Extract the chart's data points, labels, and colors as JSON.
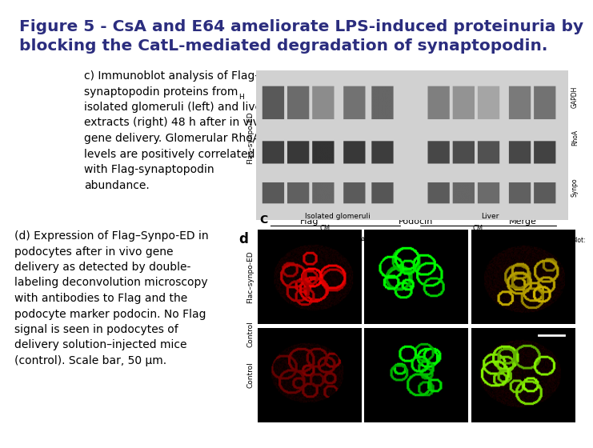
{
  "title_line1": "Figure 5 - CsA and E64 ameliorate LPS-induced proteinuria by",
  "title_line2": "blocking the CatL-mediated degradation of synaptopodin.",
  "title_color": "#2b2d7e",
  "title_fontsize": 14.5,
  "background_color": "#ffffff",
  "panel_c_fontsize": 10.0,
  "panel_d_fontsize": 10.0,
  "caption_c_full": "c) Immunoblot analysis of Flag-\nsynaptopodin proteins from\nisolated glomeruli (left) and liver\nextracts (right) 48 h after in vivo\ngene delivery. Glomerular RhoA\nlevels are positively correlated\nwith Flag-synaptopodin\nabundance.",
  "caption_d_full": "(d) Expression of Flag–Synpo-ED in\npodocytes after in vivo gene\ndelivery as detected by double-\nlabeling deconvolution microscopy\nwith antibodies to Flag and the\npodocyte marker podocin. No Flag\nsignal is seen in podocytes of\ndelivery solution–injected mice\n(control). Scale bar, 50 μm.",
  "blot_labels_right": [
    "Synpo",
    "RhoA",
    "GAPDH"
  ],
  "col_headers_d": [
    "Flag",
    "Podocin",
    "Merge"
  ],
  "row_labels_d": [
    "Flac–synpo-ED",
    "Control"
  ]
}
